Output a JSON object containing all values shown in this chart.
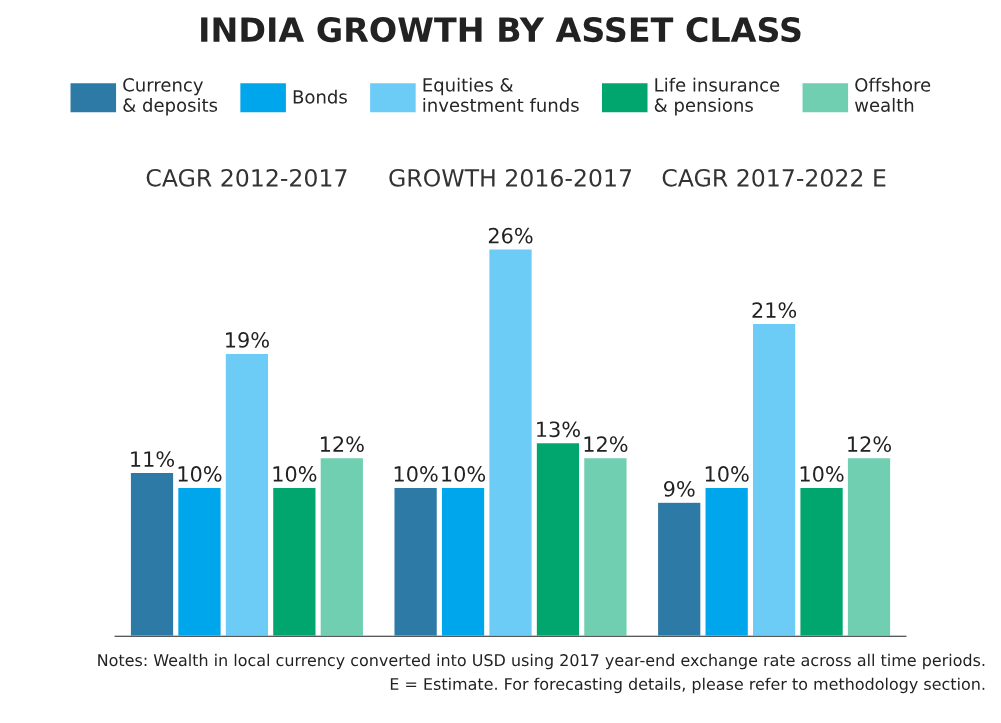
{
  "chart_data": {
    "type": "bar",
    "title": "INDIA GROWTH BY ASSET CLASS",
    "categories": [
      "CAGR 2012-2017",
      "GROWTH 2016-2017",
      "CAGR 2017-2022 E"
    ],
    "series": [
      {
        "name": "Currency\n& deposits",
        "color": "#2e7aa6",
        "values": [
          11,
          10,
          9
        ],
        "value_labels": [
          "11%",
          "10%",
          "9%"
        ]
      },
      {
        "name": "Bonds",
        "color": "#00a6ec",
        "values": [
          10,
          10,
          10
        ],
        "value_labels": [
          "10%",
          "10%",
          "10%"
        ]
      },
      {
        "name": "Equities &\ninvestment funds",
        "color": "#6cccf6",
        "values": [
          19,
          26,
          21
        ],
        "value_labels": [
          "19%",
          "26%",
          "21%"
        ]
      },
      {
        "name": "Life insurance\n& pensions",
        "color": "#00a66e",
        "values": [
          10,
          13,
          10
        ],
        "value_labels": [
          "10%",
          "13%",
          "10%"
        ]
      },
      {
        "name": "Offshore\nwealth",
        "color": "#6fcfb0",
        "values": [
          12,
          12,
          12
        ],
        "value_labels": [
          "12%",
          "12%",
          "12%"
        ]
      }
    ],
    "legend": "top",
    "grid": false,
    "annotations": [
      "Notes: Wealth in local currency converted into USD using 2017 year-end exchange rate across all time periods.",
      "E = Estimate. For forecasting details, please refer to methodology section."
    ]
  }
}
